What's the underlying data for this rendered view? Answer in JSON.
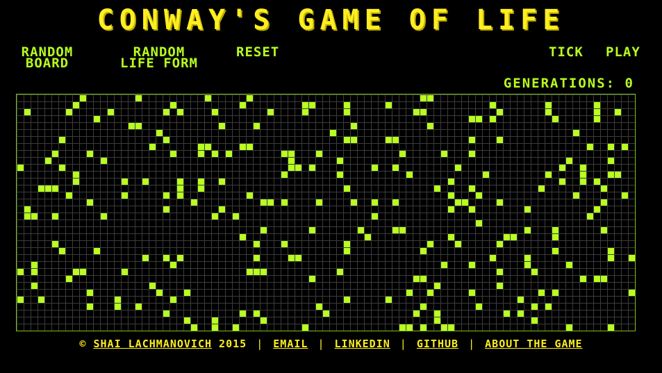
{
  "title": "CONWAY'S GAME OF LIFE",
  "controls": {
    "random_board": "RANDOM\nBOARD",
    "random_life_form": "RANDOM\nLIFE FORM",
    "reset": "RESET",
    "tick": "TICK",
    "play": "PLAY"
  },
  "generations": {
    "label": "GENERATIONS:",
    "value": "0"
  },
  "board": {
    "cols": 89,
    "rows": 34,
    "cell_color": "#b8ff1f",
    "grid_color": "#3c3c3c",
    "live_density": 0.09,
    "seed": 2015
  },
  "footer": {
    "copyright": "©",
    "author": "SHAI LACHMANOVICH",
    "year": "2015",
    "email": "EMAIL",
    "linkedin": "LINKEDIN",
    "github": "GITHUB",
    "about": "ABOUT THE GAME",
    "separator": "|"
  }
}
